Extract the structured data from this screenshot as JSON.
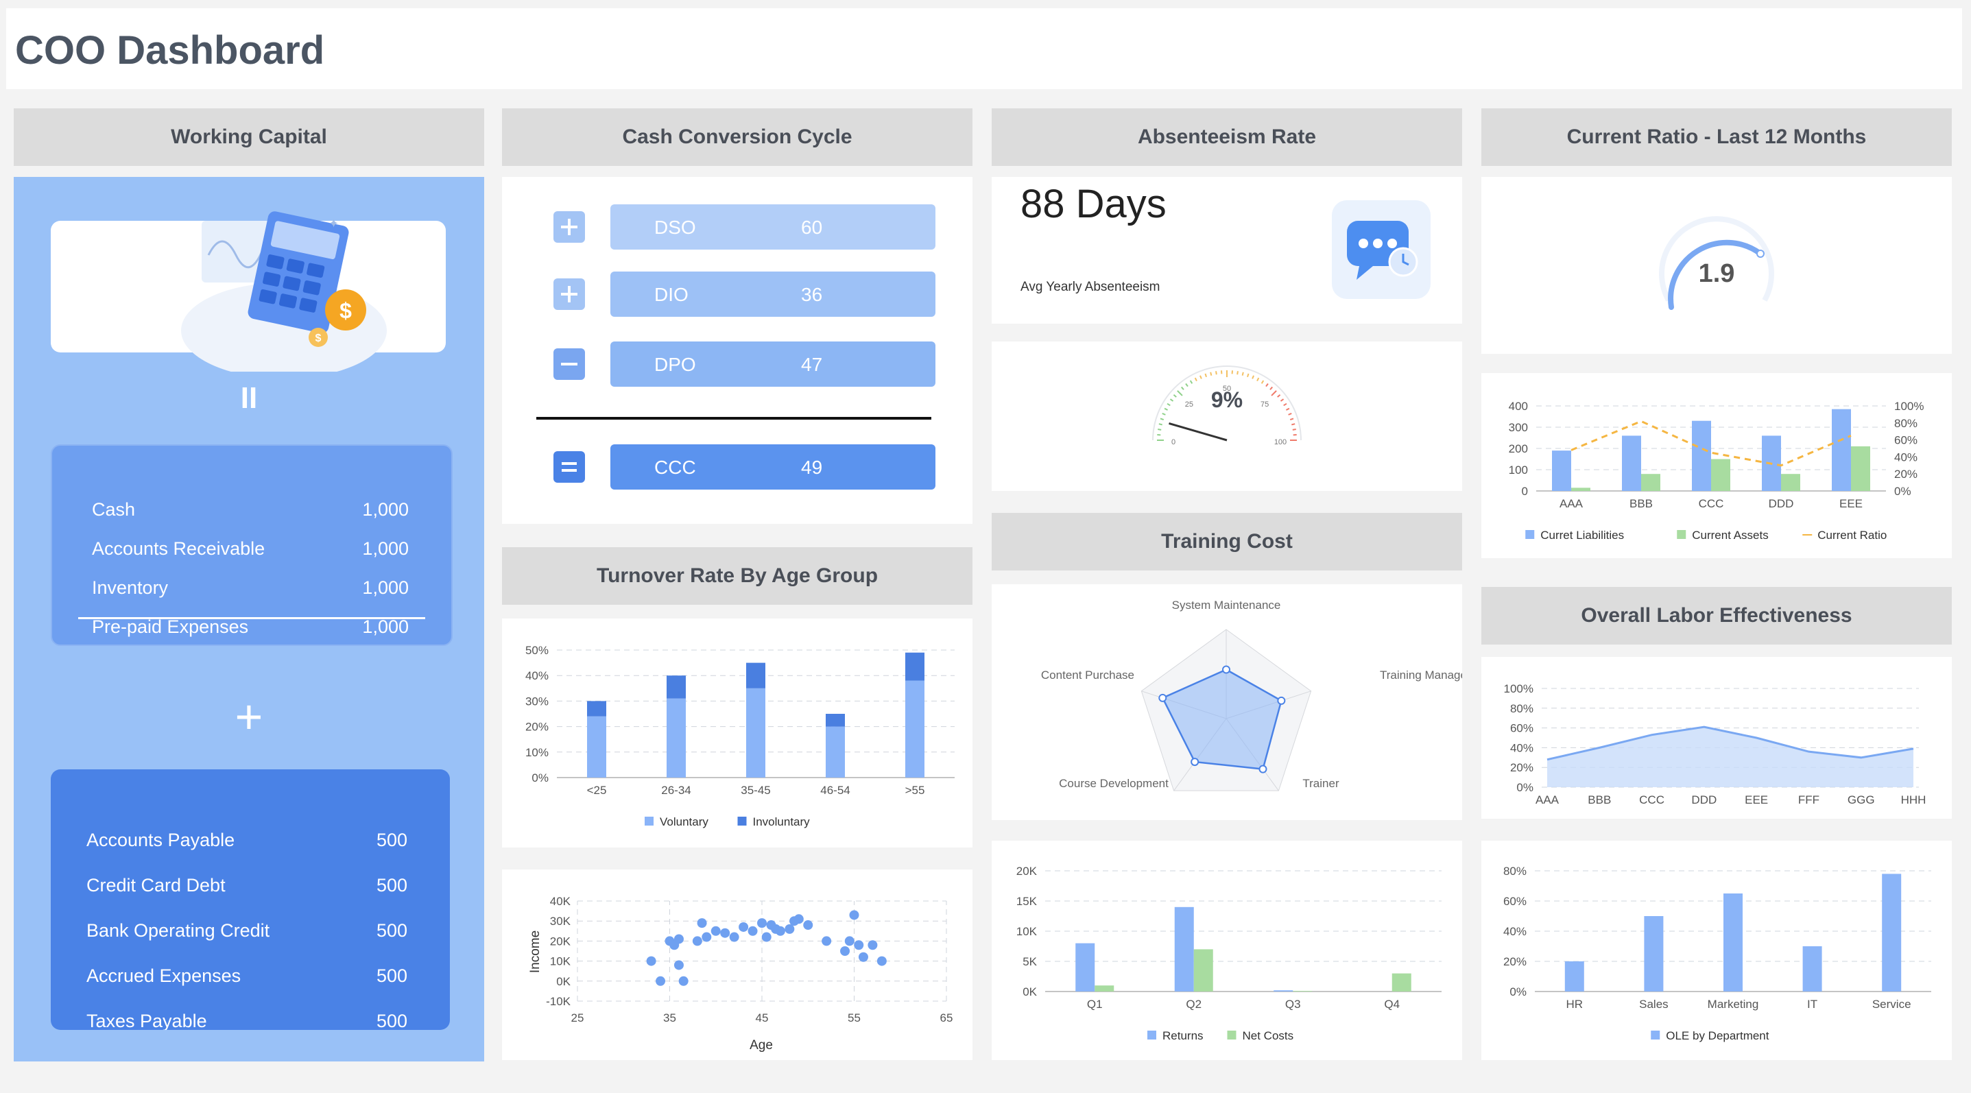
{
  "header": {
    "title": "COO Dashboard"
  },
  "colors": {
    "blue": "#8ab4f8",
    "blue_dark": "#4a7fe0",
    "green": "#a8dca0",
    "orange": "#f5b642",
    "panel": "#99c1f7"
  },
  "working_capital": {
    "title": "Working Capital",
    "equals": "II",
    "plus": "+",
    "assets": [
      {
        "label": "Cash",
        "value": "1,000"
      },
      {
        "label": "Accounts Receivable",
        "value": "1,000"
      },
      {
        "label": "Inventory",
        "value": "1,000"
      },
      {
        "label": "Pre-paid Expenses",
        "value": "1,000"
      }
    ],
    "liabilities": [
      {
        "label": "Accounts Payable",
        "value": "500"
      },
      {
        "label": "Credit Card Debt",
        "value": "500"
      },
      {
        "label": "Bank Operating Credit",
        "value": "500"
      },
      {
        "label": "Accrued Expenses",
        "value": "500"
      },
      {
        "label": "Taxes Payable",
        "value": "500"
      }
    ]
  },
  "ccc": {
    "title": "Cash Conversion Cycle",
    "rows": [
      {
        "icon": "plus-icon",
        "label": "DSO",
        "value": "60"
      },
      {
        "icon": "plus-icon",
        "label": "DIO",
        "value": "36"
      },
      {
        "icon": "minus-icon",
        "label": "DPO",
        "value": "47"
      },
      {
        "icon": "equals-icon",
        "label": "CCC",
        "value": "49"
      }
    ]
  },
  "absenteeism": {
    "title": "Absenteeism Rate",
    "days": "88 Days",
    "sub": "Avg Yearly Absenteeism",
    "gauge_value": "9%",
    "gauge_ticks": [
      "0",
      "25",
      "50",
      "75",
      "100"
    ]
  },
  "current_ratio": {
    "title": "Current Ratio - Last 12 Months",
    "value": "1.9"
  },
  "turnover": {
    "title": "Turnover Rate By Age Group"
  },
  "training": {
    "title": "Training Cost"
  },
  "ole": {
    "title": "Overall Labor Effectiveness"
  },
  "chart_data": [
    {
      "id": "cr_combo",
      "type": "bar",
      "categories": [
        "AAA",
        "BBB",
        "CCC",
        "DDD",
        "EEE"
      ],
      "series": [
        {
          "name": "Curret Liabilities",
          "values": [
            190,
            260,
            330,
            260,
            385
          ]
        },
        {
          "name": "Current Assets",
          "values": [
            15,
            80,
            150,
            80,
            210
          ]
        },
        {
          "name": "Current Ratio",
          "values": [
            48,
            82,
            45,
            30,
            65
          ],
          "type": "line",
          "axis": "right"
        }
      ],
      "yticks_left": [
        "0",
        "100",
        "200",
        "300",
        "400"
      ],
      "yticks_right": [
        "0%",
        "20%",
        "40%",
        "60%",
        "80%",
        "100%"
      ],
      "ylim": [
        0,
        400
      ]
    },
    {
      "id": "turnover",
      "type": "bar",
      "categories": [
        "<25",
        "26-34",
        "35-45",
        "46-54",
        ">55"
      ],
      "series": [
        {
          "name": "Voluntary",
          "values": [
            24,
            31,
            35,
            20,
            38
          ]
        },
        {
          "name": "Involuntary",
          "values": [
            6,
            9,
            10,
            5,
            11
          ]
        }
      ],
      "yticks": [
        "0%",
        "10%",
        "20%",
        "30%",
        "40%",
        "50%"
      ],
      "ylim": [
        0,
        50
      ]
    },
    {
      "id": "scatter",
      "type": "scatter",
      "xlabel": "Age",
      "ylabel": "Income",
      "xticks": [
        "25",
        "35",
        "45",
        "55",
        "65"
      ],
      "yticks": [
        "-10K",
        "0K",
        "10K",
        "20K",
        "30K",
        "40K"
      ],
      "xlim": [
        25,
        65
      ],
      "ylim": [
        -10000,
        40000
      ],
      "points": [
        [
          33,
          10000
        ],
        [
          34,
          0
        ],
        [
          35,
          20000
        ],
        [
          35.5,
          18000
        ],
        [
          36,
          21000
        ],
        [
          36,
          8000
        ],
        [
          36.5,
          0
        ],
        [
          38,
          20000
        ],
        [
          38.5,
          29000
        ],
        [
          39,
          22000
        ],
        [
          40,
          25000
        ],
        [
          41,
          24000
        ],
        [
          42,
          22000
        ],
        [
          43,
          27000
        ],
        [
          44,
          25000
        ],
        [
          45,
          29000
        ],
        [
          45.5,
          22000
        ],
        [
          46,
          28000
        ],
        [
          46.5,
          26000
        ],
        [
          47,
          25000
        ],
        [
          48,
          26000
        ],
        [
          48.5,
          30000
        ],
        [
          49,
          31000
        ],
        [
          50,
          28000
        ],
        [
          52,
          20000
        ],
        [
          54,
          15000
        ],
        [
          54.5,
          20000
        ],
        [
          55,
          33000
        ],
        [
          55.5,
          18000
        ],
        [
          56,
          12000
        ],
        [
          57,
          18000
        ],
        [
          58,
          10000
        ]
      ]
    },
    {
      "id": "radar",
      "type": "radar",
      "axes": [
        "System Maintenance",
        "Training Management",
        "Trainer",
        "Course Development",
        "Content Purchase"
      ],
      "values": [
        55,
        65,
        70,
        60,
        75
      ],
      "max": 100
    },
    {
      "id": "returns",
      "type": "bar",
      "categories": [
        "Q1",
        "Q2",
        "Q3",
        "Q4"
      ],
      "series": [
        {
          "name": "Returns",
          "values": [
            8000,
            14000,
            200,
            0
          ]
        },
        {
          "name": "Net Costs",
          "values": [
            1000,
            7000,
            100,
            3000
          ]
        }
      ],
      "yticks": [
        "0K",
        "5K",
        "10K",
        "15K",
        "20K"
      ],
      "ylim": [
        0,
        20000
      ]
    },
    {
      "id": "ole_area",
      "type": "area",
      "categories": [
        "AAA",
        "BBB",
        "CCC",
        "DDD",
        "EEE",
        "FFF",
        "GGG",
        "HHH"
      ],
      "values": [
        28,
        40,
        53,
        61,
        50,
        36,
        30,
        39
      ],
      "yticks": [
        "0%",
        "20%",
        "40%",
        "60%",
        "80%",
        "100%"
      ],
      "ylim": [
        0,
        100
      ]
    },
    {
      "id": "ole_dept",
      "type": "bar",
      "categories": [
        "HR",
        "Sales",
        "Marketing",
        "IT",
        "Service"
      ],
      "series": [
        {
          "name": "OLE by Department",
          "values": [
            20,
            50,
            65,
            30,
            78
          ]
        }
      ],
      "yticks": [
        "0%",
        "20%",
        "40%",
        "60%",
        "80%"
      ],
      "ylim": [
        0,
        80
      ]
    }
  ]
}
